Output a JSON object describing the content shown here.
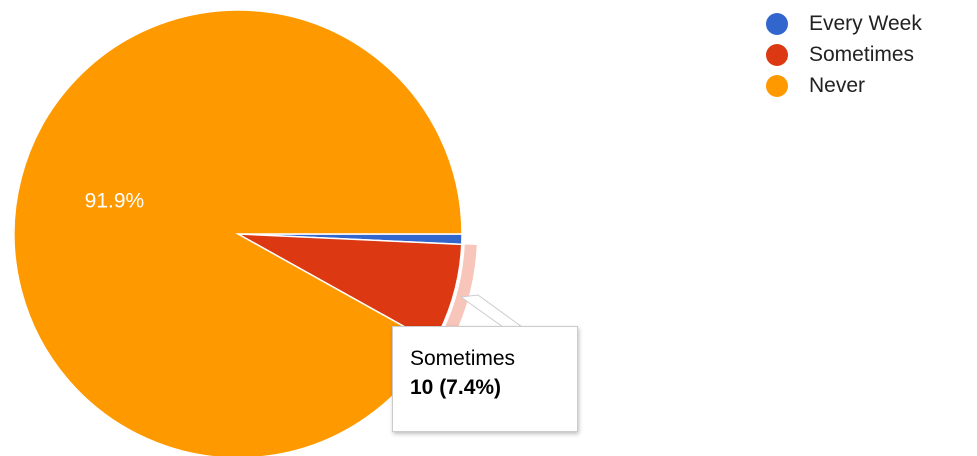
{
  "chart_data": {
    "type": "pie",
    "categories": [
      "Every Week",
      "Sometimes",
      "Never"
    ],
    "values": [
      1,
      10,
      125
    ],
    "percent_labels": [
      "",
      "",
      "91.9%"
    ],
    "colors": [
      "#3366cc",
      "#dc3912",
      "#ff9900"
    ],
    "highlight_color": "#f7c5b9",
    "legend_position": "top-right",
    "start_angle_deg": 90,
    "direction": "clockwise"
  },
  "tooltip": {
    "name": "Sometimes",
    "value": "10 (7.4%)"
  }
}
